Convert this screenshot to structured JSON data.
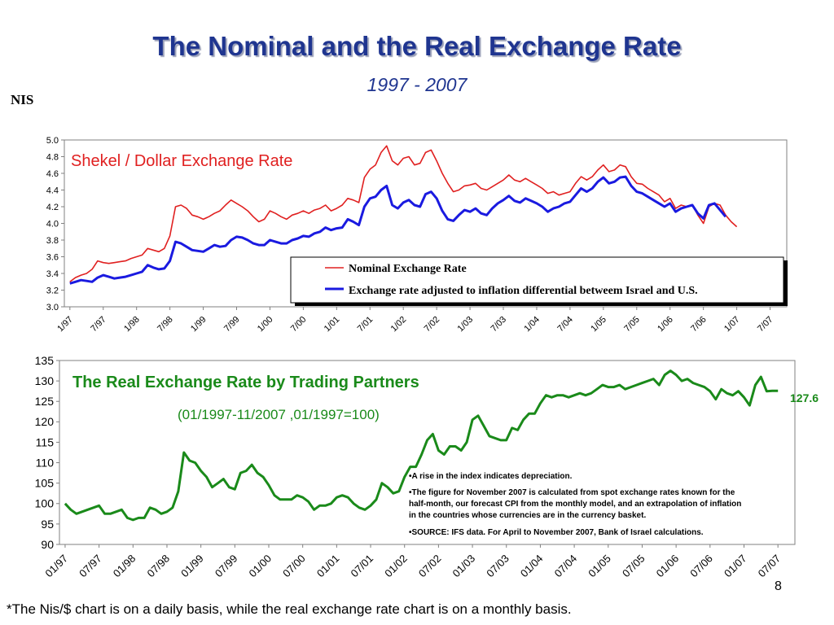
{
  "slide": {
    "title": "The Nominal and the Real Exchange Rate",
    "subtitle": "1997 - 2007",
    "unit_label": "NIS",
    "page_number": "8",
    "footnote": "*The Nis/$ chart is on a daily basis, while the real exchange rate chart is on a monthly basis."
  },
  "chart_data": [
    {
      "type": "line",
      "title": "Shekel / Dollar Exchange Rate",
      "ylim": [
        3.0,
        5.0
      ],
      "yticks": [
        "3.0",
        "3.2",
        "3.4",
        "3.6",
        "3.8",
        "4.0",
        "4.2",
        "4.4",
        "4.6",
        "4.8",
        "5.0"
      ],
      "xticks": [
        "1/97",
        "7/97",
        "1/98",
        "7/98",
        "1/99",
        "7/99",
        "1/00",
        "7/00",
        "1/01",
        "7/01",
        "1/02",
        "7/02",
        "1/03",
        "7/03",
        "1/04",
        "7/04",
        "1/05",
        "7/05",
        "1/06",
        "7/06",
        "1/07",
        "7/07"
      ],
      "x_start_month": 1,
      "x_start_year": 1997,
      "grid": false,
      "legend_position": "bottom-right",
      "series": [
        {
          "name": "Nominal Exchange Rate",
          "color": "#e02020",
          "values": [
            3.3,
            3.35,
            3.38,
            3.4,
            3.45,
            3.55,
            3.53,
            3.52,
            3.53,
            3.54,
            3.55,
            3.58,
            3.6,
            3.62,
            3.7,
            3.68,
            3.66,
            3.7,
            3.85,
            4.2,
            4.22,
            4.18,
            4.1,
            4.08,
            4.05,
            4.08,
            4.12,
            4.15,
            4.22,
            4.28,
            4.24,
            4.2,
            4.15,
            4.08,
            4.02,
            4.05,
            4.15,
            4.12,
            4.08,
            4.05,
            4.1,
            4.12,
            4.15,
            4.12,
            4.16,
            4.18,
            4.22,
            4.15,
            4.18,
            4.22,
            4.3,
            4.28,
            4.25,
            4.55,
            4.65,
            4.7,
            4.85,
            4.93,
            4.75,
            4.7,
            4.78,
            4.8,
            4.7,
            4.72,
            4.85,
            4.88,
            4.75,
            4.6,
            4.48,
            4.38,
            4.4,
            4.45,
            4.46,
            4.48,
            4.42,
            4.4,
            4.44,
            4.48,
            4.52,
            4.58,
            4.52,
            4.5,
            4.54,
            4.5,
            4.46,
            4.42,
            4.36,
            4.38,
            4.34,
            4.36,
            4.38,
            4.48,
            4.56,
            4.52,
            4.56,
            4.64,
            4.7,
            4.62,
            4.64,
            4.7,
            4.68,
            4.56,
            4.48,
            4.47,
            4.42,
            4.38,
            4.34,
            4.26,
            4.3,
            4.18,
            4.22,
            4.2,
            4.22,
            4.1,
            4.0,
            4.2,
            4.24,
            4.22,
            4.1,
            4.02,
            3.96
          ]
        },
        {
          "name": "Exchange rate adjusted to inflation differential betweem Israel and  U.S.",
          "color": "#1a1ae0",
          "values": [
            3.28,
            3.3,
            3.32,
            3.31,
            3.3,
            3.35,
            3.38,
            3.36,
            3.34,
            3.35,
            3.36,
            3.38,
            3.4,
            3.42,
            3.5,
            3.47,
            3.45,
            3.46,
            3.55,
            3.78,
            3.76,
            3.72,
            3.68,
            3.67,
            3.66,
            3.7,
            3.74,
            3.72,
            3.73,
            3.8,
            3.84,
            3.83,
            3.8,
            3.76,
            3.74,
            3.74,
            3.8,
            3.78,
            3.76,
            3.76,
            3.8,
            3.82,
            3.85,
            3.84,
            3.88,
            3.9,
            3.95,
            3.92,
            3.94,
            3.95,
            4.05,
            4.02,
            3.98,
            4.2,
            4.3,
            4.32,
            4.4,
            4.45,
            4.22,
            4.18,
            4.25,
            4.28,
            4.22,
            4.2,
            4.35,
            4.38,
            4.3,
            4.15,
            4.05,
            4.03,
            4.1,
            4.16,
            4.14,
            4.18,
            4.12,
            4.1,
            4.18,
            4.24,
            4.28,
            4.33,
            4.27,
            4.25,
            4.3,
            4.27,
            4.24,
            4.2,
            4.14,
            4.18,
            4.2,
            4.24,
            4.26,
            4.34,
            4.42,
            4.38,
            4.42,
            4.5,
            4.55,
            4.48,
            4.5,
            4.55,
            4.56,
            4.45,
            4.38,
            4.36,
            4.32,
            4.28,
            4.24,
            4.2,
            4.24,
            4.14,
            4.18,
            4.2,
            4.22,
            4.12,
            4.06,
            4.22,
            4.24,
            4.16,
            4.08
          ]
        }
      ]
    },
    {
      "type": "line",
      "title": "The Real Exchange Rate by Trading Partners",
      "subtitle": "(01/1997-11/2007 ,01/1997=100)",
      "ylim": [
        90,
        135
      ],
      "yticks": [
        "90",
        "95",
        "100",
        "105",
        "110",
        "115",
        "120",
        "125",
        "130",
        "135"
      ],
      "xticks": [
        "01/97",
        "07/97",
        "01/98",
        "07/98",
        "01/99",
        "07/99",
        "01/00",
        "07/00",
        "01/01",
        "07/01",
        "01/02",
        "07/02",
        "01/03",
        "07/03",
        "01/04",
        "07/04",
        "01/05",
        "07/05",
        "01/06",
        "07/06",
        "01/07",
        "07/07"
      ],
      "grid": false,
      "end_label": "127.6",
      "series": [
        {
          "name": "",
          "color": "#1a8a1a",
          "values": [
            100,
            98.5,
            97.5,
            98,
            98.5,
            99,
            99.5,
            97.5,
            97.5,
            98,
            98.5,
            96.5,
            96,
            96.5,
            96.5,
            99,
            98.5,
            97.5,
            98,
            99,
            103,
            112.5,
            110.5,
            110,
            108,
            106.5,
            104,
            105,
            106,
            104,
            103.5,
            107.5,
            108,
            109.5,
            107.5,
            106.5,
            104.5,
            102,
            101,
            101,
            101,
            102,
            101.5,
            100.5,
            98.5,
            99.5,
            99.5,
            100,
            101.5,
            102,
            101.5,
            100,
            99,
            98.5,
            99.5,
            101,
            105,
            104,
            102.5,
            103,
            106.5,
            109,
            109,
            112,
            115.5,
            117,
            113,
            112,
            114,
            114,
            113,
            115,
            120.5,
            121.5,
            119,
            116.5,
            116,
            115.5,
            115.5,
            118.5,
            118,
            120.5,
            122,
            122,
            124.5,
            126.5,
            126,
            126.5,
            126.5,
            126,
            126.5,
            127,
            126.5,
            127,
            128,
            129,
            128.5,
            128.5,
            129,
            128,
            128.5,
            129,
            129.5,
            130,
            130.5,
            129,
            131.5,
            132.5,
            131.5,
            130,
            130.5,
            129.5,
            129,
            128.5,
            127.5,
            125.5,
            128,
            127,
            126.5,
            127.5,
            126,
            124,
            129,
            131,
            127.5,
            127.6,
            127.6
          ]
        }
      ]
    }
  ],
  "legend": {
    "nominal": "Nominal Exchange Rate",
    "adjusted": "Exchange rate adjusted to inflation differential betweem Israel and  U.S."
  },
  "notes": [
    "•A rise in the index indicates depreciation.",
    "•The figure for November 2007 is calculated from spot exchange rates known for the",
    "half-month, our forecast CPI  from the monthly model,  and an extrapolation of inflation",
    "in the countries whose currencies are in the currency basket.",
    "•SOURCE: IFS data. For April to November 2007, Bank of Israel calculations."
  ]
}
